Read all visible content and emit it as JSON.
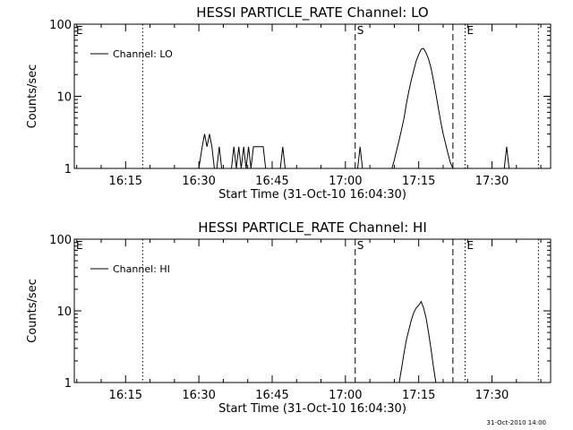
{
  "timestamp": "31-Oct-2010 14:00",
  "chart_data": [
    {
      "type": "line",
      "title": "HESSI PARTICLE_RATE Channel: LO",
      "xlabel": "Start Time (31-Oct-10 16:04:30)",
      "ylabel": "Counts/sec",
      "yscale": "log",
      "xlim": [
        "16:04:30",
        "17:42:00"
      ],
      "ylim": [
        1,
        100
      ],
      "x_ticks": [
        "16:15",
        "16:30",
        "16:45",
        "17:00",
        "17:15",
        "17:30"
      ],
      "y_ticks": [
        "1",
        "10",
        "100"
      ],
      "legend": {
        "label": "Channel: LO",
        "placement": "top-left"
      },
      "markers": [
        {
          "time": "16:04:30",
          "label": "E",
          "style": "none"
        },
        {
          "time": "16:18:30",
          "label": "",
          "style": "dotted"
        },
        {
          "time": "17:02:00",
          "label": "S",
          "style": "dashed"
        },
        {
          "time": "17:22:00",
          "label": "",
          "style": "dashed"
        },
        {
          "time": "17:24:30",
          "label": "E",
          "style": "dotted"
        },
        {
          "time": "17:39:30",
          "label": "",
          "style": "dotted"
        }
      ],
      "series": [
        {
          "name": "Channel: LO",
          "x": [
            "16:04:30",
            "16:30:00",
            "16:30:40",
            "16:31:10",
            "16:31:40",
            "16:32:10",
            "16:32:40",
            "16:33:10",
            "16:33:40",
            "16:34:10",
            "16:34:40",
            "16:35:10",
            "16:36:40",
            "16:37:10",
            "16:37:40",
            "16:38:10",
            "16:38:40",
            "16:39:10",
            "16:39:40",
            "16:40:10",
            "16:40:40",
            "16:41:10",
            "16:41:40",
            "16:42:10",
            "16:42:40",
            "16:43:10",
            "16:43:40",
            "16:44:10",
            "16:44:40",
            "16:46:40",
            "16:47:10",
            "16:47:40",
            "17:02:30",
            "17:03:00",
            "17:03:30",
            "17:09:30",
            "17:10:00",
            "17:10:30",
            "17:11:00",
            "17:11:30",
            "17:12:00",
            "17:12:30",
            "17:13:00",
            "17:13:30",
            "17:14:00",
            "17:14:30",
            "17:15:00",
            "17:15:30",
            "17:16:00",
            "17:16:30",
            "17:17:00",
            "17:17:30",
            "17:18:00",
            "17:18:30",
            "17:19:00",
            "17:19:30",
            "17:20:00",
            "17:20:30",
            "17:21:00",
            "17:21:30",
            "17:22:00",
            "17:22:30",
            "17:32:30",
            "17:33:00",
            "17:33:30",
            "17:42:00"
          ],
          "y": [
            1,
            1,
            2,
            3,
            2,
            3,
            2,
            1,
            1,
            2,
            1,
            1,
            1,
            2,
            1,
            2,
            1,
            2,
            1,
            2,
            1,
            2,
            2,
            2,
            2,
            2,
            1,
            1,
            1,
            1,
            2,
            1,
            1,
            2,
            1,
            1,
            1.3,
            1.8,
            2.5,
            3.5,
            5,
            8,
            12,
            17,
            23,
            31,
            38,
            45,
            46,
            40,
            33,
            25,
            17,
            11,
            7,
            4.5,
            3,
            2.2,
            1.6,
            1.2,
            1,
            1,
            1,
            2,
            1,
            1
          ]
        }
      ]
    },
    {
      "type": "line",
      "title": "HESSI PARTICLE_RATE Channel: HI",
      "xlabel": "Start Time (31-Oct-10 16:04:30)",
      "ylabel": "Counts/sec",
      "yscale": "log",
      "xlim": [
        "16:04:30",
        "17:42:00"
      ],
      "ylim": [
        1,
        100
      ],
      "x_ticks": [
        "16:15",
        "16:30",
        "16:45",
        "17:00",
        "17:15",
        "17:30"
      ],
      "y_ticks": [
        "1",
        "10",
        "100"
      ],
      "legend": {
        "label": "Channel: HI",
        "placement": "top-left"
      },
      "markers": [
        {
          "time": "16:04:30",
          "label": "E",
          "style": "none"
        },
        {
          "time": "16:18:30",
          "label": "",
          "style": "dotted"
        },
        {
          "time": "17:02:00",
          "label": "S",
          "style": "dashed"
        },
        {
          "time": "17:22:00",
          "label": "",
          "style": "dashed"
        },
        {
          "time": "17:24:30",
          "label": "E",
          "style": "dotted"
        },
        {
          "time": "17:39:30",
          "label": "",
          "style": "dotted"
        }
      ],
      "series": [
        {
          "name": "Channel: HI",
          "x": [
            "17:11:00",
            "17:11:30",
            "17:12:00",
            "17:12:30",
            "17:13:00",
            "17:13:30",
            "17:14:00",
            "17:14:30",
            "17:15:00",
            "17:15:30",
            "17:16:00",
            "17:16:30",
            "17:17:00",
            "17:17:30",
            "17:18:00",
            "17:18:30"
          ],
          "y": [
            1,
            1.6,
            2.6,
            4,
            5.5,
            7.5,
            9.5,
            11,
            12,
            13.5,
            11,
            8,
            5,
            3,
            1.7,
            1
          ]
        }
      ]
    }
  ]
}
